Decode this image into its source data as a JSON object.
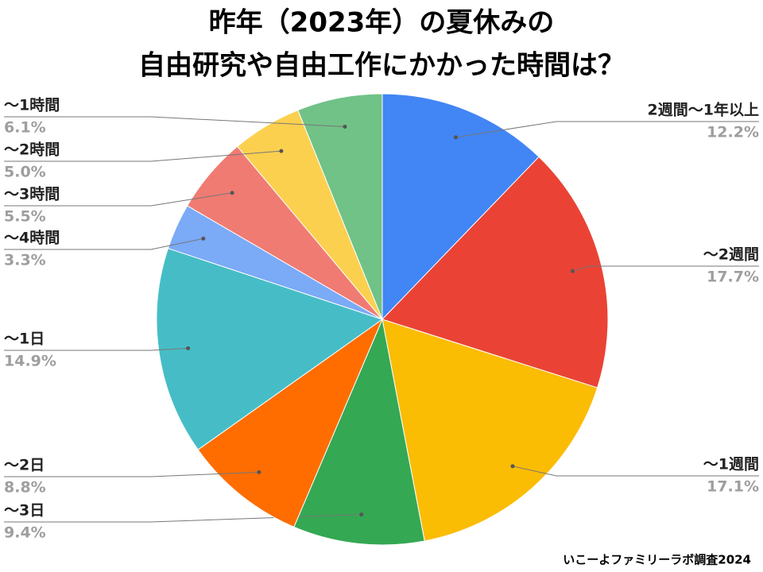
{
  "chart_data": {
    "type": "pie",
    "title": [
      "昨年（2023年）の夏休みの",
      "自由研究や自由工作にかかった時間は？"
    ],
    "categories": [
      "2週間〜1年以上",
      "〜2週間",
      "〜1週間",
      "〜3日",
      "〜2日",
      "〜1日",
      "〜4時間",
      "〜3時間",
      "〜2時間",
      "〜1時間"
    ],
    "values": [
      12.2,
      17.7,
      17.1,
      9.4,
      8.8,
      14.9,
      3.3,
      5.5,
      5.0,
      6.1
    ],
    "value_labels": [
      "12.2%",
      "17.7%",
      "17.1%",
      "9.4%",
      "8.8%",
      "14.9%",
      "3.3%",
      "5.5%",
      "5.0%",
      "6.1%"
    ],
    "colors": [
      "#4285f4",
      "#ea4335",
      "#fbbc04",
      "#34a853",
      "#ff6d01",
      "#46bdc6",
      "#7baaf7",
      "#f07b72",
      "#fcd04f",
      "#71c287"
    ],
    "source": "いこーよファミリーラボ調査2024"
  }
}
